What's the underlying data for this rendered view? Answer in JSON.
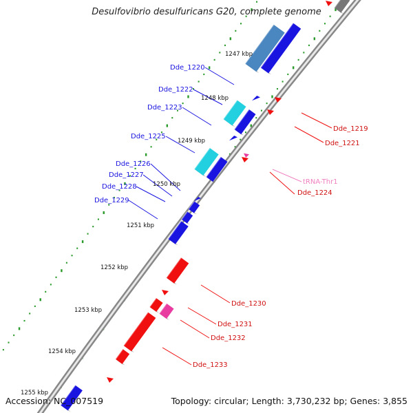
{
  "title": "Desulfovibrio desulfuricans G20, complete genome",
  "footer": {
    "accession": "Accession: NC_007519",
    "summary": "Topology: circular; Length: 3,730,232 bp; Genes: 3,855"
  },
  "colors": {
    "forward_gene": "#1a14e0",
    "forward_rna": "#22d0e0",
    "forward_pseudo": "#4a86c0",
    "reverse_gene": "#f01010",
    "reverse_rna": "#e83ca0",
    "trna_label": "#f080c0",
    "backbone": "#999999",
    "dots": "#2a9a2a"
  },
  "scale_labels": [
    "1247 kbp",
    "1248 kbp",
    "1249 kbp",
    "1250 kbp",
    "1251 kbp",
    "1252 kbp",
    "1253 kbp",
    "1254 kbp",
    "1255 kbp"
  ],
  "gene_labels_left": [
    "Dde_1220",
    "Dde_1222",
    "Dde_1223",
    "Dde_1225",
    "Dde_1226",
    "Dde_1227",
    "Dde_1228",
    "Dde_1229"
  ],
  "gene_labels_right": [
    "Dde_1219",
    "Dde_1221",
    "tRNA-Thr1",
    "Dde_1224",
    "Dde_1230",
    "Dde_1231",
    "Dde_1232",
    "Dde_1233"
  ]
}
